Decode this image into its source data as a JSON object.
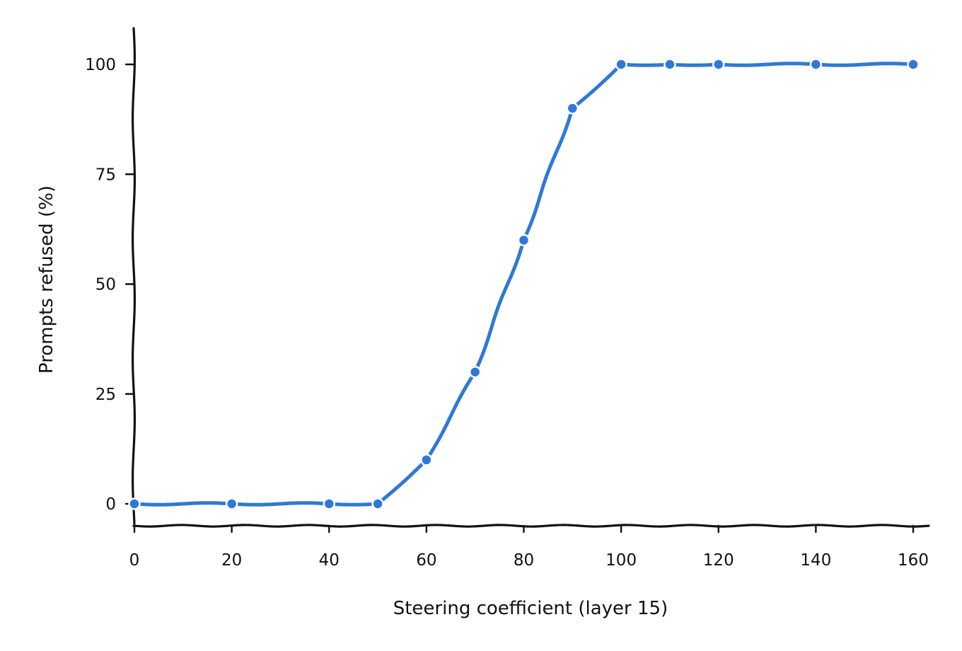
{
  "chart_data": {
    "type": "line",
    "title": "",
    "xlabel": "Steering coefficient  (layer 15)",
    "ylabel": "Prompts refused (%)",
    "xlim": [
      0,
      163
    ],
    "ylim": [
      -5,
      108
    ],
    "x_ticks": [
      0,
      20,
      40,
      60,
      80,
      100,
      120,
      140,
      160
    ],
    "y_ticks": [
      0,
      25,
      50,
      75,
      100
    ],
    "x_tick_labels": [
      "0",
      "20",
      "40",
      "60",
      "80",
      "100",
      "120",
      "140",
      "160"
    ],
    "y_tick_labels": [
      "0",
      "25",
      "50",
      "75",
      "100"
    ],
    "grid": false,
    "legend": "none",
    "style": "hand-drawn (xkcd)",
    "series": [
      {
        "color": "#2f78d6",
        "marker": "circle",
        "x": [
          0,
          20,
          40,
          50,
          60,
          70,
          80,
          90,
          100,
          110,
          120,
          140,
          160
        ],
        "y": [
          0,
          0,
          0,
          0,
          10,
          30,
          60,
          90,
          100,
          100,
          100,
          100,
          100
        ]
      }
    ]
  }
}
